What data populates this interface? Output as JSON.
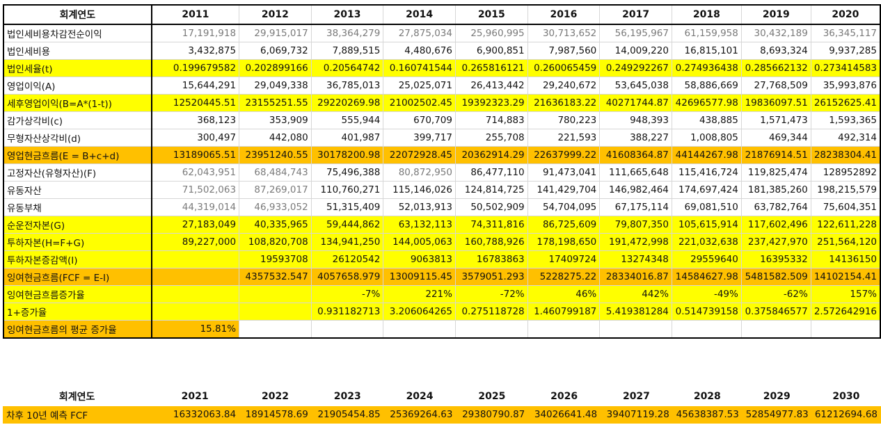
{
  "header_label": "회계연도",
  "years": [
    "2011",
    "2012",
    "2013",
    "2014",
    "2015",
    "2016",
    "2017",
    "2018",
    "2019",
    "2020"
  ],
  "rows": [
    {
      "label": "법인세비용차감전순이익",
      "style": "white",
      "gray": true,
      "values": [
        "17,191,918",
        "29,915,017",
        "38,364,279",
        "27,875,034",
        "25,960,995",
        "30,713,652",
        "56,195,967",
        "61,159,958",
        "30,432,189",
        "36,345,117"
      ]
    },
    {
      "label": "법인세비용",
      "style": "white",
      "gray": false,
      "values": [
        "3,432,875",
        "6,069,732",
        "7,889,515",
        "4,480,676",
        "6,900,851",
        "7,987,560",
        "14,009,220",
        "16,815,101",
        "8,693,324",
        "9,937,285"
      ]
    },
    {
      "label": "법인세율(t)",
      "style": "yellow",
      "gray": false,
      "values": [
        "0.199679582",
        "0.202899166",
        "0.20564742",
        "0.160741544",
        "0.265816121",
        "0.260065459",
        "0.249292267",
        "0.274936438",
        "0.285662132",
        "0.273414583"
      ]
    },
    {
      "label": "영업이익(A)",
      "style": "white",
      "gray": false,
      "values": [
        "15,644,291",
        "29,049,338",
        "36,785,013",
        "25,025,071",
        "26,413,442",
        "29,240,672",
        "53,645,038",
        "58,886,669",
        "27,768,509",
        "35,993,876"
      ]
    },
    {
      "label": "세후영업이익(B=A*(1-t))",
      "style": "yellow",
      "gray": false,
      "values": [
        "12520445.51",
        "23155251.55",
        "29220269.98",
        "21002502.45",
        "19392323.29",
        "21636183.22",
        "40271744.87",
        "42696577.98",
        "19836097.51",
        "26152625.41"
      ]
    },
    {
      "label": "감가상각비(c)",
      "style": "white",
      "gray": false,
      "values": [
        "368,123",
        "353,909",
        "555,944",
        "670,709",
        "714,883",
        "780,223",
        "948,393",
        "438,885",
        "1,571,473",
        "1,593,365"
      ]
    },
    {
      "label": "무형자산상각비(d)",
      "style": "white",
      "gray": false,
      "values": [
        "300,497",
        "442,080",
        "401,987",
        "399,717",
        "255,708",
        "221,593",
        "388,227",
        "1,008,805",
        "469,344",
        "492,314"
      ]
    },
    {
      "label": "영업현금흐름(E = B+c+d)",
      "style": "orange",
      "gray": false,
      "values": [
        "13189065.51",
        "23951240.55",
        "30178200.98",
        "22072928.45",
        "20362914.29",
        "22637999.22",
        "41608364.87",
        "44144267.98",
        "21876914.51",
        "28238304.41"
      ]
    },
    {
      "label": "고정자산(유형자산)(F)",
      "style": "white",
      "gray": false,
      "grayCols": [
        0,
        1,
        3
      ],
      "values": [
        "62,043,951",
        "68,484,743",
        "75,496,388",
        "80,872,950",
        "86,477,110",
        "91,473,041",
        "111,665,648",
        "115,416,724",
        "119,825,474",
        "128952892"
      ]
    },
    {
      "label": "유동자산",
      "style": "white",
      "gray": false,
      "grayCols": [
        0,
        1
      ],
      "values": [
        "71,502,063",
        "87,269,017",
        "110,760,271",
        "115,146,026",
        "124,814,725",
        "141,429,704",
        "146,982,464",
        "174,697,424",
        "181,385,260",
        "198,215,579"
      ]
    },
    {
      "label": "유동부채",
      "style": "white",
      "gray": false,
      "grayCols": [
        0,
        1
      ],
      "values": [
        "44,319,014",
        "46,933,052",
        "51,315,409",
        "52,013,913",
        "50,502,909",
        "54,704,095",
        "67,175,114",
        "69,081,510",
        "63,782,764",
        "75,604,351"
      ]
    },
    {
      "label": "순운전자본(G)",
      "style": "yellow",
      "gray": false,
      "values": [
        "27,183,049",
        "40,335,965",
        "59,444,862",
        "63,132,113",
        "74,311,816",
        "86,725,609",
        "79,807,350",
        "105,615,914",
        "117,602,496",
        "122,611,228"
      ]
    },
    {
      "label": "투하자본(H=F+G)",
      "style": "yellow",
      "gray": false,
      "values": [
        "89,227,000",
        "108,820,708",
        "134,941,250",
        "144,005,063",
        "160,788,926",
        "178,198,650",
        "191,472,998",
        "221,032,638",
        "237,427,970",
        "251,564,120"
      ]
    },
    {
      "label": "투하자본증감액(I)",
      "style": "yellow",
      "gray": false,
      "values": [
        "",
        "19593708",
        "26120542",
        "9063813",
        "16783863",
        "17409724",
        "13274348",
        "29559640",
        "16395332",
        "14136150"
      ]
    },
    {
      "label": "잉여현금흐름(FCF = E-I)",
      "style": "orange",
      "gray": false,
      "values": [
        "",
        "4357532.547",
        "4057658.979",
        "13009115.45",
        "3579051.293",
        "5228275.22",
        "28334016.87",
        "14584627.98",
        "5481582.509",
        "14102154.41"
      ]
    },
    {
      "label": "잉여현금흐름증가율",
      "style": "yellow",
      "gray": false,
      "values": [
        "",
        "",
        "-7%",
        "221%",
        "-72%",
        "46%",
        "442%",
        "-49%",
        "-62%",
        "157%"
      ]
    },
    {
      "label": "1+증가율",
      "style": "yellow",
      "gray": false,
      "values": [
        "",
        "",
        "0.931182713",
        "3.206064265",
        "0.275118728",
        "1.460799187",
        "5.419381284",
        "0.514739158",
        "0.375846577",
        "2.572642916"
      ]
    },
    {
      "label": "잉여현금흐름의 평균 증가율",
      "style": "orange",
      "gray": false,
      "values": [
        "15.81%"
      ]
    }
  ],
  "forecast": {
    "header_label": "회계연도",
    "years": [
      "2021",
      "2022",
      "2023",
      "2024",
      "2025",
      "2026",
      "2027",
      "2028",
      "2029",
      "2030"
    ],
    "label": "차후 10년 예측 FCF",
    "values": [
      "16332063.84",
      "18914578.69",
      "21905454.85",
      "25369264.63",
      "29380790.87",
      "34026641.48",
      "39407119.28",
      "45638387.53",
      "52854977.83",
      "61212694.68"
    ]
  }
}
